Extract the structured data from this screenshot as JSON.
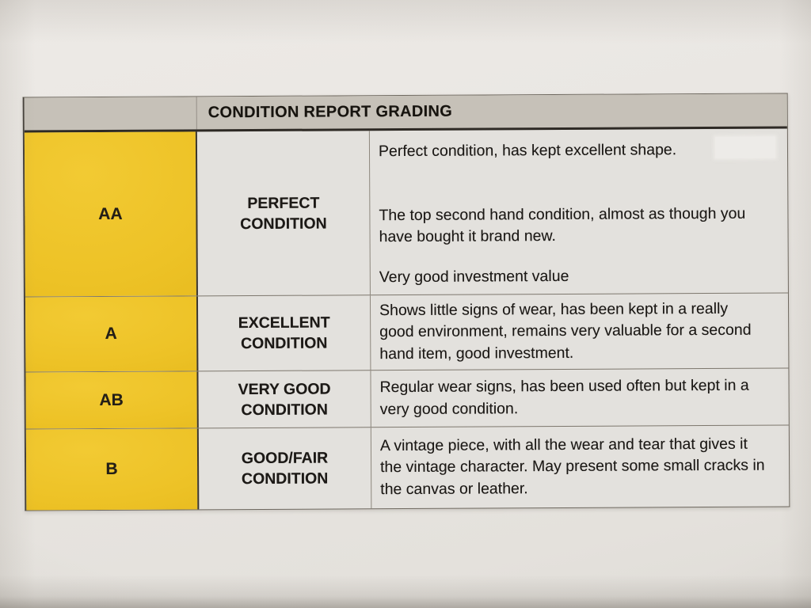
{
  "table": {
    "header": {
      "title": "CONDITION REPORT GRADING"
    },
    "rows": [
      {
        "grade": "AA",
        "condition": "PERFECT CONDITION",
        "description": [
          "Perfect condition, has kept excellent shape.",
          "The top second hand condition, almost as though you have bought it brand new.",
          "Very good investment value"
        ]
      },
      {
        "grade": "A",
        "condition": "EXCELLENT CONDITION",
        "description": [
          "Shows little signs of wear, has been kept in a really good environment, remains very valuable for a second hand item, good investment."
        ]
      },
      {
        "grade": "AB",
        "condition": "VERY GOOD CONDITION",
        "description": [
          "Regular wear signs, has been used often but kept in a very good condition."
        ]
      },
      {
        "grade": "B",
        "condition": "GOOD/FAIR CONDITION",
        "description": [
          "A vintage piece, with all the wear and tear that gives it the vintage character. May present some small cracks in the canvas or leather."
        ]
      }
    ],
    "colors": {
      "grade_column_yellow": "#EDC226",
      "header_gray": "#C6C1B8",
      "paper_background": "#E8E5E1",
      "border_dark": "#3B362E",
      "text": "#1B1815"
    }
  }
}
